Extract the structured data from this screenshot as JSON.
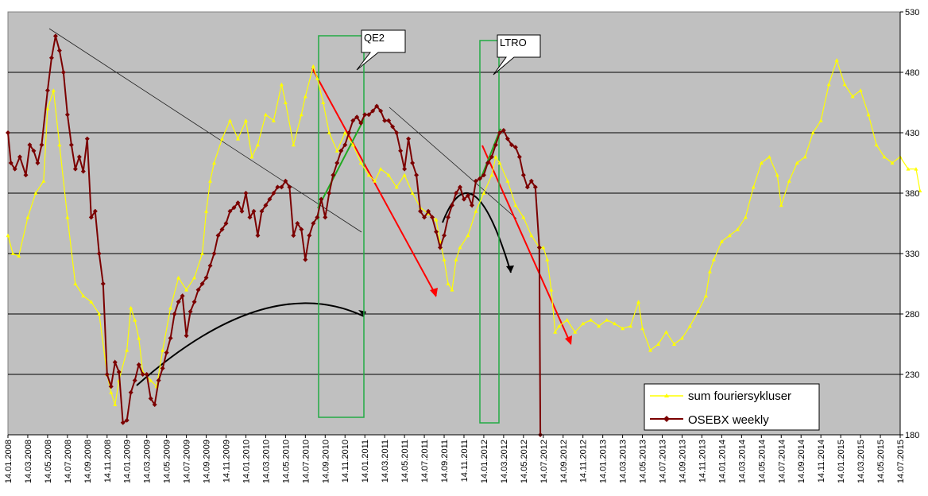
{
  "chart_data": {
    "type": "line",
    "title": "",
    "xlabel": "",
    "ylabel": "",
    "ylim": [
      180,
      530
    ],
    "y_ticks": [
      180,
      230,
      280,
      330,
      380,
      430,
      480,
      530
    ],
    "x_tick_labels": [
      "14.01.2008",
      "14.03.2008",
      "14.05.2008",
      "14.07.2008",
      "14.09.2008",
      "14.11.2008",
      "14.01.2009",
      "14.03.2009",
      "14.05.2009",
      "14.07.2009",
      "14.09.2009",
      "14.11.2009",
      "14.01.2010",
      "14.03.2010",
      "14.05.2010",
      "14.07.2010",
      "14.09.2010",
      "14.11.2010",
      "14.01.2011",
      "14.03.2011",
      "14.05.2011",
      "14.07.2011",
      "14.09.2011",
      "14.11.2011",
      "14.01.2012",
      "14.03.2012",
      "14.05.2012",
      "14.07.2012",
      "14.09.2012",
      "14.11.2012",
      "14.01.2013",
      "14.03.2013",
      "14.05.2013",
      "14.07.2013",
      "14.09.2013",
      "14.11.2013",
      "14.01.2014",
      "14.03.2014",
      "14.05.2014",
      "14.07.2014",
      "14.09.2014",
      "14.11.2014",
      "14.01.2015",
      "14.03.2015",
      "14.05.2015",
      "14.07.2015"
    ],
    "grid": "horizontal",
    "legend_position": "bottom-right",
    "background_color": "#c0c0c0",
    "series": [
      {
        "name": "sum fouriersykluser",
        "color": "#ffff00",
        "marker": "triangle",
        "points": [
          [
            0.0,
            345
          ],
          [
            0.25,
            330
          ],
          [
            0.55,
            328
          ],
          [
            1.0,
            360
          ],
          [
            1.4,
            380
          ],
          [
            1.8,
            390
          ],
          [
            2.0,
            450
          ],
          [
            2.3,
            465
          ],
          [
            2.6,
            420
          ],
          [
            3.0,
            360
          ],
          [
            3.4,
            305
          ],
          [
            3.8,
            295
          ],
          [
            4.2,
            290
          ],
          [
            4.6,
            280
          ],
          [
            5.0,
            230
          ],
          [
            5.2,
            215
          ],
          [
            5.4,
            205
          ],
          [
            5.6,
            225
          ],
          [
            6.0,
            250
          ],
          [
            6.2,
            285
          ],
          [
            6.4,
            275
          ],
          [
            6.6,
            260
          ],
          [
            6.8,
            232
          ],
          [
            7.2,
            225
          ],
          [
            7.5,
            220
          ],
          [
            7.8,
            250
          ],
          [
            8.2,
            285
          ],
          [
            8.6,
            310
          ],
          [
            9.0,
            300
          ],
          [
            9.4,
            310
          ],
          [
            9.8,
            330
          ],
          [
            10.0,
            365
          ],
          [
            10.2,
            390
          ],
          [
            10.4,
            405
          ],
          [
            10.8,
            425
          ],
          [
            11.2,
            440
          ],
          [
            11.6,
            425
          ],
          [
            12.0,
            440
          ],
          [
            12.3,
            410
          ],
          [
            12.6,
            420
          ],
          [
            13.0,
            445
          ],
          [
            13.4,
            440
          ],
          [
            13.8,
            470
          ],
          [
            14.0,
            455
          ],
          [
            14.4,
            420
          ],
          [
            14.8,
            445
          ],
          [
            15.0,
            460
          ],
          [
            15.4,
            485
          ],
          [
            15.6,
            475
          ],
          [
            15.9,
            455
          ],
          [
            16.2,
            430
          ],
          [
            16.6,
            415
          ],
          [
            17.0,
            430
          ],
          [
            17.4,
            420
          ],
          [
            17.8,
            405
          ],
          [
            18.2,
            395
          ],
          [
            18.5,
            390
          ],
          [
            18.8,
            400
          ],
          [
            19.2,
            395
          ],
          [
            19.6,
            385
          ],
          [
            20.0,
            395
          ],
          [
            20.4,
            380
          ],
          [
            20.8,
            368
          ],
          [
            21.2,
            363
          ],
          [
            21.6,
            358
          ],
          [
            21.8,
            340
          ],
          [
            22.0,
            325
          ],
          [
            22.2,
            305
          ],
          [
            22.4,
            300
          ],
          [
            22.6,
            325
          ],
          [
            22.8,
            335
          ],
          [
            23.2,
            345
          ],
          [
            23.6,
            365
          ],
          [
            24.0,
            380
          ],
          [
            24.4,
            395
          ],
          [
            24.6,
            410
          ],
          [
            24.8,
            405
          ],
          [
            25.2,
            390
          ],
          [
            25.6,
            370
          ],
          [
            26.0,
            360
          ],
          [
            26.4,
            345
          ],
          [
            26.8,
            335
          ],
          [
            27.0,
            335
          ],
          [
            27.2,
            325
          ],
          [
            27.4,
            300
          ],
          [
            27.6,
            265
          ],
          [
            27.8,
            270
          ],
          [
            28.2,
            275
          ],
          [
            28.6,
            265
          ],
          [
            29.0,
            272
          ],
          [
            29.4,
            275
          ],
          [
            29.8,
            270
          ],
          [
            30.2,
            275
          ],
          [
            30.6,
            272
          ],
          [
            31.0,
            268
          ],
          [
            31.4,
            270
          ],
          [
            31.8,
            290
          ],
          [
            32.0,
            268
          ],
          [
            32.4,
            250
          ],
          [
            32.8,
            255
          ],
          [
            33.2,
            265
          ],
          [
            33.6,
            255
          ],
          [
            34.0,
            260
          ],
          [
            34.4,
            270
          ],
          [
            34.8,
            282
          ],
          [
            35.2,
            295
          ],
          [
            35.4,
            315
          ],
          [
            35.6,
            325
          ],
          [
            36.0,
            340
          ],
          [
            36.4,
            345
          ],
          [
            36.8,
            350
          ],
          [
            37.2,
            360
          ],
          [
            37.6,
            385
          ],
          [
            38.0,
            405
          ],
          [
            38.4,
            410
          ],
          [
            38.8,
            395
          ],
          [
            39.0,
            370
          ],
          [
            39.4,
            390
          ],
          [
            39.8,
            405
          ],
          [
            40.2,
            410
          ],
          [
            40.6,
            430
          ],
          [
            41.0,
            440
          ],
          [
            41.4,
            470
          ],
          [
            41.8,
            490
          ],
          [
            42.2,
            470
          ],
          [
            42.6,
            460
          ],
          [
            43.0,
            465
          ],
          [
            43.4,
            445
          ],
          [
            43.8,
            420
          ],
          [
            44.2,
            410
          ],
          [
            44.6,
            405
          ],
          [
            45.0,
            410
          ],
          [
            45.4,
            400
          ],
          [
            45.8,
            400
          ],
          [
            46.0,
            382
          ]
        ]
      },
      {
        "name": "OSEBX weekly",
        "color": "#7b0000",
        "marker": "diamond",
        "points": [
          [
            0.0,
            430
          ],
          [
            0.15,
            405
          ],
          [
            0.35,
            400
          ],
          [
            0.6,
            410
          ],
          [
            0.9,
            395
          ],
          [
            1.1,
            420
          ],
          [
            1.3,
            415
          ],
          [
            1.5,
            405
          ],
          [
            1.7,
            420
          ],
          [
            2.0,
            465
          ],
          [
            2.2,
            492
          ],
          [
            2.4,
            510
          ],
          [
            2.6,
            498
          ],
          [
            2.8,
            480
          ],
          [
            3.0,
            445
          ],
          [
            3.2,
            420
          ],
          [
            3.4,
            400
          ],
          [
            3.6,
            410
          ],
          [
            3.8,
            398
          ],
          [
            4.0,
            425
          ],
          [
            4.2,
            360
          ],
          [
            4.4,
            365
          ],
          [
            4.6,
            330
          ],
          [
            4.8,
            305
          ],
          [
            5.0,
            230
          ],
          [
            5.2,
            220
          ],
          [
            5.4,
            240
          ],
          [
            5.6,
            232
          ],
          [
            5.8,
            190
          ],
          [
            6.0,
            192
          ],
          [
            6.2,
            215
          ],
          [
            6.4,
            225
          ],
          [
            6.6,
            238
          ],
          [
            6.8,
            230
          ],
          [
            7.0,
            230
          ],
          [
            7.2,
            210
          ],
          [
            7.4,
            205
          ],
          [
            7.6,
            225
          ],
          [
            7.8,
            235
          ],
          [
            8.0,
            248
          ],
          [
            8.2,
            260
          ],
          [
            8.4,
            280
          ],
          [
            8.6,
            290
          ],
          [
            8.8,
            295
          ],
          [
            9.0,
            262
          ],
          [
            9.2,
            282
          ],
          [
            9.4,
            290
          ],
          [
            9.6,
            300
          ],
          [
            9.8,
            305
          ],
          [
            10.0,
            310
          ],
          [
            10.2,
            320
          ],
          [
            10.4,
            330
          ],
          [
            10.6,
            345
          ],
          [
            10.8,
            350
          ],
          [
            11.0,
            355
          ],
          [
            11.2,
            365
          ],
          [
            11.4,
            368
          ],
          [
            11.6,
            372
          ],
          [
            11.8,
            365
          ],
          [
            12.0,
            380
          ],
          [
            12.2,
            360
          ],
          [
            12.4,
            365
          ],
          [
            12.6,
            345
          ],
          [
            12.8,
            365
          ],
          [
            13.0,
            370
          ],
          [
            13.2,
            375
          ],
          [
            13.4,
            380
          ],
          [
            13.6,
            385
          ],
          [
            13.8,
            385
          ],
          [
            14.0,
            390
          ],
          [
            14.2,
            385
          ],
          [
            14.4,
            345
          ],
          [
            14.6,
            355
          ],
          [
            14.8,
            350
          ],
          [
            15.0,
            325
          ],
          [
            15.2,
            345
          ],
          [
            15.4,
            355
          ],
          [
            15.6,
            360
          ],
          [
            15.8,
            375
          ],
          [
            16.0,
            360
          ],
          [
            16.2,
            380
          ],
          [
            16.4,
            395
          ],
          [
            16.6,
            405
          ],
          [
            16.8,
            415
          ],
          [
            17.0,
            420
          ],
          [
            17.2,
            430
          ],
          [
            17.4,
            440
          ],
          [
            17.6,
            443
          ],
          [
            17.8,
            438
          ],
          [
            18.0,
            445
          ],
          [
            18.2,
            445
          ],
          [
            18.4,
            448
          ],
          [
            18.6,
            452
          ],
          [
            18.8,
            448
          ],
          [
            19.0,
            440
          ],
          [
            19.2,
            440
          ],
          [
            19.4,
            435
          ],
          [
            19.6,
            430
          ],
          [
            19.8,
            415
          ],
          [
            20.0,
            400
          ],
          [
            20.2,
            425
          ],
          [
            20.4,
            405
          ],
          [
            20.6,
            395
          ],
          [
            20.8,
            365
          ],
          [
            21.0,
            360
          ],
          [
            21.2,
            365
          ],
          [
            21.4,
            360
          ],
          [
            21.6,
            348
          ],
          [
            21.8,
            335
          ],
          [
            22.0,
            345
          ],
          [
            22.2,
            360
          ],
          [
            22.4,
            370
          ],
          [
            22.6,
            380
          ],
          [
            22.8,
            385
          ],
          [
            23.0,
            375
          ],
          [
            23.2,
            378
          ],
          [
            23.4,
            370
          ],
          [
            23.6,
            390
          ],
          [
            23.8,
            392
          ],
          [
            24.0,
            395
          ],
          [
            24.2,
            405
          ],
          [
            24.4,
            410
          ],
          [
            24.6,
            420
          ],
          [
            24.8,
            430
          ],
          [
            25.0,
            432
          ],
          [
            25.2,
            425
          ],
          [
            25.4,
            420
          ],
          [
            25.6,
            418
          ],
          [
            25.8,
            410
          ],
          [
            26.0,
            395
          ],
          [
            26.2,
            385
          ],
          [
            26.4,
            390
          ],
          [
            26.6,
            385
          ],
          [
            26.8,
            335
          ],
          [
            26.85,
            180
          ]
        ]
      }
    ],
    "annotations": [
      {
        "type": "callout",
        "text": "QE2"
      },
      {
        "type": "callout",
        "text": "LTRO"
      }
    ]
  }
}
